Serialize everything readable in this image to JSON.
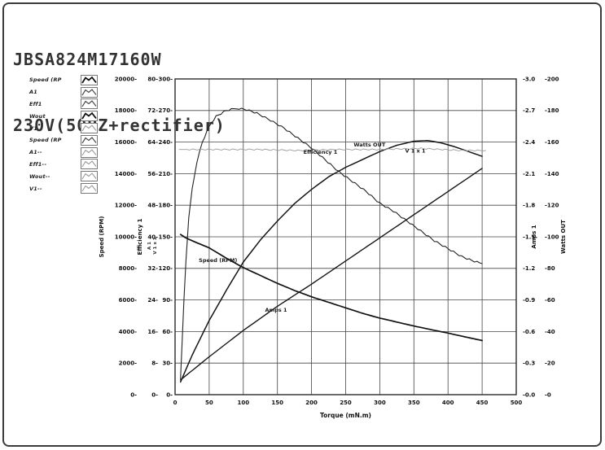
{
  "window": {
    "title_line1": "JBSA824M17160W",
    "title_line2": "230V(50HZ+rectifier)"
  },
  "legend": {
    "items": [
      {
        "label": "Speed (RP",
        "style": "bold"
      },
      {
        "label": "A1",
        "style": "medium"
      },
      {
        "label": "Eff1",
        "style": "medium"
      },
      {
        "label": "Wout",
        "style": "bold"
      },
      {
        "label": "V1",
        "style": "light"
      },
      {
        "label": "Speed (RP",
        "style": "medium"
      },
      {
        "label": "A1--",
        "style": "light"
      },
      {
        "label": "Eff1--",
        "style": "light"
      },
      {
        "label": "Wout--",
        "style": "light"
      },
      {
        "label": "V1--",
        "style": "light"
      }
    ]
  },
  "chart_data": {
    "type": "line",
    "xlabel": "Torque (mN.m)",
    "xlim": [
      0,
      500
    ],
    "x_ticks": [
      "0",
      "50",
      "100",
      "150",
      "200",
      "250",
      "300",
      "350",
      "400",
      "450",
      "500"
    ],
    "grid": true,
    "unified_scale": [
      0,
      300
    ],
    "axes": [
      {
        "name": "speed",
        "title": "Speed (RPM)",
        "side": "left",
        "range": [
          0,
          20000
        ],
        "ticks": [
          "20000",
          "18000",
          "16000",
          "14000",
          "12000",
          "10000",
          "8000",
          "6000",
          "4000",
          "2000",
          "0"
        ]
      },
      {
        "name": "efficiency",
        "title": "Efficiency 1",
        "side": "left",
        "range": [
          0,
          80
        ],
        "ticks": [
          "80",
          "72",
          "64",
          "56",
          "48",
          "40",
          "32",
          "24",
          "16",
          "8",
          "0"
        ]
      },
      {
        "name": "volts",
        "title": "V 1 x 1",
        "side": "left",
        "range": [
          0,
          300
        ],
        "ticks": [
          "300",
          "270",
          "240",
          "210",
          "180",
          "150",
          "120",
          "90",
          "60",
          "30",
          "0"
        ]
      },
      {
        "name": "amps",
        "title": "Amps 1",
        "side": "right",
        "range": [
          0,
          3
        ],
        "ticks": [
          "3.0",
          "2.7",
          "2.4",
          "2.1",
          "1.8",
          "1.5",
          "1.2",
          "0.9",
          "0.6",
          "0.3",
          "0.0"
        ]
      },
      {
        "name": "watts",
        "title": "Watts OUT",
        "side": "right",
        "range": [
          0,
          200
        ],
        "ticks": [
          "200",
          "180",
          "160",
          "140",
          "120",
          "100",
          "80",
          "60",
          "40",
          "20",
          "0"
        ]
      }
    ],
    "left_scale_note": [
      "A 1",
      "V 1 x 1"
    ],
    "series": [
      {
        "name": "Efficiency 1",
        "axis": "efficiency",
        "points": [
          [
            8,
            4
          ],
          [
            10,
            12
          ],
          [
            13,
            24
          ],
          [
            16,
            34
          ],
          [
            20,
            45
          ],
          [
            25,
            52
          ],
          [
            32,
            59
          ],
          [
            40,
            64
          ],
          [
            50,
            68
          ],
          [
            60,
            70.5
          ],
          [
            75,
            72
          ],
          [
            90,
            72.6
          ],
          [
            105,
            72.2
          ],
          [
            120,
            71.3
          ],
          [
            140,
            69.5
          ],
          [
            160,
            67.5
          ],
          [
            180,
            65
          ],
          [
            200,
            62.5
          ],
          [
            220,
            59.5
          ],
          [
            240,
            56.5
          ],
          [
            260,
            54
          ],
          [
            280,
            51.5
          ],
          [
            300,
            48.5
          ],
          [
            320,
            46.5
          ],
          [
            340,
            44
          ],
          [
            360,
            41.5
          ],
          [
            380,
            39
          ],
          [
            400,
            37
          ],
          [
            420,
            35
          ],
          [
            435,
            34
          ],
          [
            450,
            33.2
          ]
        ]
      },
      {
        "name": "Speed (RPM)",
        "axis": "speed",
        "points": [
          [
            8,
            10150
          ],
          [
            15,
            9950
          ],
          [
            25,
            9750
          ],
          [
            50,
            9300
          ],
          [
            75,
            8650
          ],
          [
            100,
            8050
          ],
          [
            125,
            7550
          ],
          [
            150,
            7050
          ],
          [
            175,
            6600
          ],
          [
            200,
            6200
          ],
          [
            225,
            5850
          ],
          [
            250,
            5500
          ],
          [
            275,
            5150
          ],
          [
            300,
            4850
          ],
          [
            325,
            4600
          ],
          [
            350,
            4350
          ],
          [
            375,
            4120
          ],
          [
            400,
            3900
          ],
          [
            425,
            3660
          ],
          [
            450,
            3430
          ]
        ]
      },
      {
        "name": "Watts OUT",
        "axis": "watts",
        "points": [
          [
            8,
            8
          ],
          [
            25,
            25
          ],
          [
            50,
            47
          ],
          [
            75,
            66
          ],
          [
            100,
            84
          ],
          [
            125,
            98
          ],
          [
            150,
            110
          ],
          [
            175,
            121
          ],
          [
            200,
            130
          ],
          [
            225,
            138
          ],
          [
            250,
            144
          ],
          [
            275,
            149
          ],
          [
            300,
            154
          ],
          [
            325,
            158
          ],
          [
            350,
            160.5
          ],
          [
            370,
            161
          ],
          [
            390,
            159.5
          ],
          [
            410,
            157
          ],
          [
            430,
            154
          ],
          [
            450,
            151
          ]
        ]
      },
      {
        "name": "Amps 1",
        "axis": "amps",
        "points": [
          [
            8,
            0.14
          ],
          [
            50,
            0.36
          ],
          [
            100,
            0.61
          ],
          [
            150,
            0.84
          ],
          [
            200,
            1.05
          ],
          [
            250,
            1.27
          ],
          [
            300,
            1.49
          ],
          [
            350,
            1.71
          ],
          [
            400,
            1.93
          ],
          [
            450,
            2.15
          ]
        ]
      },
      {
        "name": "V1",
        "axis": "volts",
        "points": [
          [
            6,
            233
          ],
          [
            60,
            233
          ],
          [
            120,
            233
          ],
          [
            180,
            232
          ],
          [
            240,
            233
          ],
          [
            300,
            233
          ],
          [
            360,
            234
          ],
          [
            420,
            232
          ],
          [
            455,
            232
          ]
        ]
      }
    ],
    "annotations": [
      {
        "text": "Efficiency 1",
        "t": 213,
        "v": 229
      },
      {
        "text": "Watts OUT",
        "t": 285,
        "v": 236
      },
      {
        "text": "V 1 x 1",
        "t": 352,
        "v": 230
      },
      {
        "text": "Speed (RPM)",
        "t": 63,
        "v": 126
      },
      {
        "text": "Amps 1",
        "t": 148,
        "v": 79
      }
    ]
  }
}
